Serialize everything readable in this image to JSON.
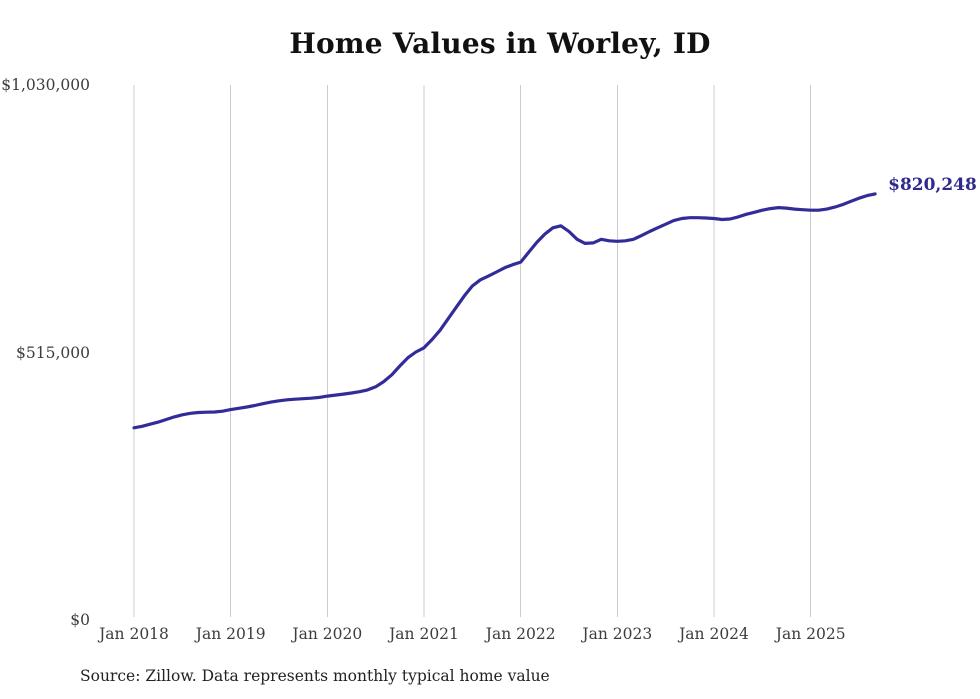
{
  "title": "Home Values in Worley, ID",
  "source_note": "Source: Zillow. Data represents monthly typical home value",
  "end_label": "$820,248",
  "colors": {
    "line": "#322c98",
    "end_label": "#2e2a8f",
    "grid": "#cccccc",
    "axis_text": "#3d3d3d",
    "title_text": "#111111",
    "source_text": "#222222",
    "background": "#ffffff"
  },
  "chart_data": {
    "type": "line",
    "title": "Home Values in Worley, ID",
    "xlabel": "",
    "ylabel": "",
    "ylim": [
      0,
      1030000
    ],
    "grid": "vertical-only",
    "legend": "none",
    "y_ticks": [
      {
        "value": 0,
        "label": "$0"
      },
      {
        "value": 515000,
        "label": "$515,000"
      },
      {
        "value": 1030000,
        "label": "$1,030,000"
      }
    ],
    "x_tick_labels": [
      "Jan 2018",
      "Jan 2019",
      "Jan 2020",
      "Jan 2021",
      "Jan 2022",
      "Jan 2023",
      "Jan 2024",
      "Jan 2025"
    ],
    "frequency": "monthly",
    "start_month": "2018-01",
    "end_month": "2025-09",
    "end_value": 820248,
    "series": [
      {
        "name": "Typical home value",
        "values": [
          370000,
          373000,
          377000,
          381000,
          386000,
          391000,
          395000,
          398000,
          399500,
          400000,
          400500,
          402000,
          405000,
          407500,
          410000,
          413000,
          416500,
          419500,
          422000,
          424000,
          425000,
          426000,
          427000,
          428500,
          431000,
          433000,
          435000,
          437000,
          439500,
          443000,
          449000,
          459000,
          472000,
          489000,
          505000,
          516000,
          524000,
          540000,
          558000,
          580000,
          602000,
          624000,
          643000,
          655000,
          662000,
          670000,
          678000,
          684000,
          689000,
          708000,
          727000,
          743000,
          755000,
          759000,
          748000,
          733000,
          725000,
          726000,
          733000,
          730000,
          729000,
          730000,
          733000,
          740000,
          748000,
          755000,
          762000,
          769000,
          773000,
          774500,
          774500,
          774000,
          773000,
          771000,
          772000,
          776000,
          781000,
          785000,
          789000,
          792000,
          794000,
          793000,
          791000,
          790000,
          789000,
          789000,
          791000,
          795000,
          800000,
          806000,
          812000,
          817000,
          820248
        ]
      }
    ]
  }
}
